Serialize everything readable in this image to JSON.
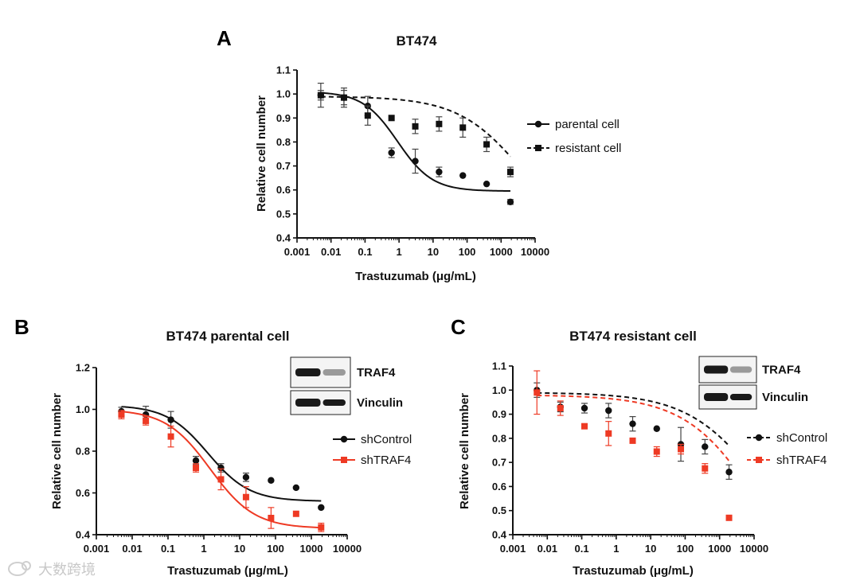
{
  "watermark": {
    "text": "大数跨境",
    "icon": "cloud-logo-icon"
  },
  "chart_data": [
    {
      "id": "A",
      "type": "scatter",
      "panel_label": "A",
      "title": "BT474",
      "xlabel": "Trastuzumab (μg/mL)",
      "ylabel": "Relative cell number",
      "xscale": "log",
      "xlim": [
        0.001,
        10000
      ],
      "ylim": [
        0.4,
        1.1
      ],
      "xticks": [
        0.001,
        0.01,
        0.1,
        1,
        10,
        100,
        1000,
        10000
      ],
      "xticklabels": [
        "0.001",
        "0.01",
        "0.1",
        "1",
        "10",
        "100",
        "1000",
        "10000"
      ],
      "yticks": [
        0.4,
        0.5,
        0.6,
        0.7,
        0.8,
        0.9,
        1.0,
        1.1
      ],
      "yticklabels": [
        "0.4",
        "0.5",
        "0.6",
        "0.7",
        "0.8",
        "0.9",
        "1.0",
        "1.1"
      ],
      "legend_position": "right",
      "series": [
        {
          "name": "parental cell",
          "marker": "circle",
          "color": "#111111",
          "fit": "solid",
          "x": [
            0.005,
            0.024,
            0.12,
            0.6,
            3,
            15,
            75,
            375,
            1875
          ],
          "y": [
            0.995,
            0.985,
            0.95,
            0.755,
            0.72,
            0.675,
            0.66,
            0.625,
            0.55
          ],
          "err": [
            0.05,
            0.04,
            0.04,
            0.02,
            0.05,
            0.02,
            0.0,
            0.0,
            0.01
          ],
          "curve": {
            "bottom": 0.595,
            "top": 1.01,
            "ec50": 0.9,
            "hill": 0.85
          }
        },
        {
          "name": "resistant cell",
          "marker": "square",
          "color": "#111111",
          "fit": "dashed",
          "x": [
            0.005,
            0.024,
            0.12,
            0.6,
            3,
            15,
            75,
            375,
            1875
          ],
          "y": [
            0.995,
            0.985,
            0.91,
            0.9,
            0.865,
            0.875,
            0.86,
            0.79,
            0.675
          ],
          "err": [
            0.02,
            0.03,
            0.04,
            0.0,
            0.03,
            0.03,
            0.04,
            0.03,
            0.02
          ],
          "curve": {
            "bottom": 0.35,
            "top": 0.99,
            "ec50": 5000,
            "hill": 0.45
          }
        }
      ]
    },
    {
      "id": "B",
      "type": "scatter",
      "panel_label": "B",
      "title": "BT474 parental cell",
      "xlabel": "Trastuzumab (μg/mL)",
      "ylabel": "Relative cell number",
      "xscale": "log",
      "xlim": [
        0.001,
        10000
      ],
      "ylim": [
        0.4,
        1.2
      ],
      "xticks": [
        0.001,
        0.01,
        0.1,
        1,
        10,
        100,
        1000,
        10000
      ],
      "xticklabels": [
        "0.001",
        "0.01",
        "0.1",
        "1",
        "10",
        "100",
        "1000",
        "10000"
      ],
      "yticks": [
        0.4,
        0.6,
        0.8,
        1.0,
        1.2
      ],
      "yticklabels": [
        "0.4",
        "0.6",
        "0.8",
        "1.0",
        "1.2"
      ],
      "legend_position": "right",
      "blot_labels": [
        "TRAF4",
        "Vinculin"
      ],
      "series": [
        {
          "name": "shControl",
          "marker": "circle",
          "color": "#111111",
          "fit": "solid",
          "x": [
            0.005,
            0.024,
            0.12,
            0.6,
            3,
            15,
            75,
            375,
            1875
          ],
          "y": [
            0.99,
            0.975,
            0.95,
            0.755,
            0.72,
            0.675,
            0.66,
            0.625,
            0.53
          ],
          "err": [
            0.02,
            0.04,
            0.04,
            0.02,
            0.02,
            0.02,
            0.0,
            0.0,
            0.0
          ],
          "curve": {
            "bottom": 0.56,
            "top": 1.02,
            "ec50": 1.3,
            "hill": 0.75
          }
        },
        {
          "name": "shTRAF4",
          "marker": "square",
          "color": "#ee3a24",
          "fit": "solid",
          "x": [
            0.005,
            0.024,
            0.12,
            0.6,
            3,
            15,
            75,
            375,
            1875
          ],
          "y": [
            0.975,
            0.945,
            0.87,
            0.72,
            0.665,
            0.58,
            0.48,
            0.5,
            0.435
          ],
          "err": [
            0.02,
            0.02,
            0.05,
            0.02,
            0.05,
            0.05,
            0.05,
            0.0,
            0.02
          ],
          "curve": {
            "bottom": 0.43,
            "top": 1.0,
            "ec50": 1.5,
            "hill": 0.7
          }
        }
      ]
    },
    {
      "id": "C",
      "type": "scatter",
      "panel_label": "C",
      "title": "BT474 resistant cell",
      "xlabel": "Trastuzumab (μg/mL)",
      "ylabel": "Relative cell number",
      "xscale": "log",
      "xlim": [
        0.001,
        10000
      ],
      "ylim": [
        0.4,
        1.1
      ],
      "xticks": [
        0.001,
        0.01,
        0.1,
        1,
        10,
        100,
        1000,
        10000
      ],
      "xticklabels": [
        "0.001",
        "0.01",
        "0.1",
        "1",
        "10",
        "100",
        "1000",
        "10000"
      ],
      "yticks": [
        0.4,
        0.5,
        0.6,
        0.7,
        0.8,
        0.9,
        1.0,
        1.1
      ],
      "yticklabels": [
        "0.4",
        "0.5",
        "0.6",
        "0.7",
        "0.8",
        "0.9",
        "1.0",
        "1.1"
      ],
      "legend_position": "right",
      "blot_labels": [
        "TRAF4",
        "Vinculin"
      ],
      "series": [
        {
          "name": "shControl",
          "marker": "circle",
          "color": "#111111",
          "fit": "dashed",
          "x": [
            0.005,
            0.024,
            0.12,
            0.6,
            3,
            15,
            75,
            375,
            1875
          ],
          "y": [
            1.0,
            0.93,
            0.925,
            0.915,
            0.86,
            0.84,
            0.775,
            0.765,
            0.66
          ],
          "err": [
            0.03,
            0.02,
            0.02,
            0.03,
            0.03,
            0.0,
            0.07,
            0.03,
            0.03
          ],
          "curve": {
            "bottom": 0.2,
            "top": 0.99,
            "ec50": 20000,
            "hill": 0.4
          }
        },
        {
          "name": "shTRAF4",
          "marker": "square",
          "color": "#ee3a24",
          "fit": "dashed",
          "x": [
            0.005,
            0.024,
            0.12,
            0.6,
            3,
            15,
            75,
            375,
            1875
          ],
          "y": [
            0.99,
            0.925,
            0.85,
            0.82,
            0.79,
            0.745,
            0.755,
            0.675,
            0.47
          ],
          "err": [
            0.09,
            0.03,
            0.0,
            0.05,
            0.0,
            0.02,
            0.02,
            0.02,
            0.0
          ],
          "curve": {
            "bottom": 0.0,
            "top": 0.98,
            "ec50": 20000,
            "hill": 0.4
          }
        }
      ]
    }
  ]
}
